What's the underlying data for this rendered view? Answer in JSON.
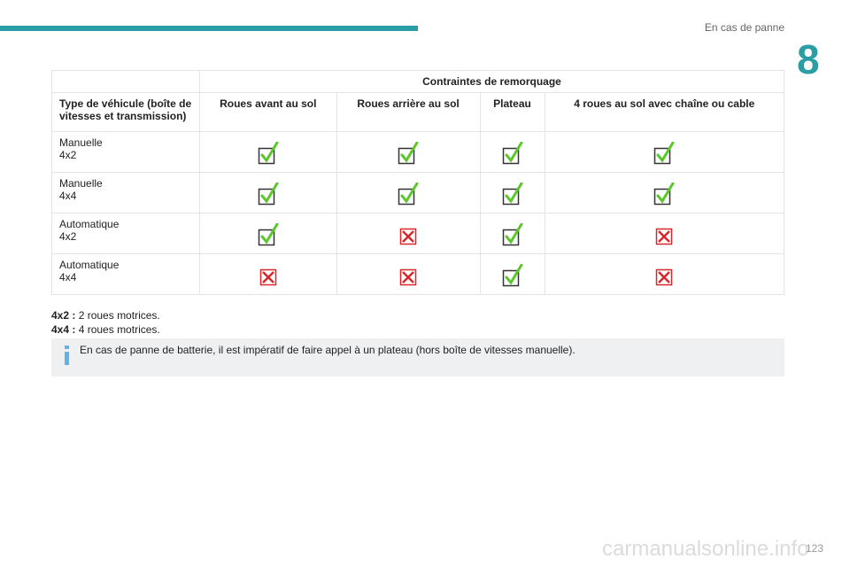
{
  "header": {
    "section": "En cas de panne",
    "chapter": "8"
  },
  "table": {
    "group_header": "Contraintes de remorquage",
    "row_header": "Type de véhicule (boîte de vitesses et transmission)",
    "columns": [
      "Roues avant au sol",
      "Roues arrière au sol",
      "Plateau",
      "4 roues au sol avec chaîne ou cable"
    ],
    "rows": [
      {
        "label": [
          "Manuelle",
          "4x2"
        ],
        "allowed": [
          true,
          true,
          true,
          true
        ]
      },
      {
        "label": [
          "Manuelle",
          "4x4"
        ],
        "allowed": [
          true,
          true,
          true,
          true
        ]
      },
      {
        "label": [
          "Automatique",
          "4x2"
        ],
        "allowed": [
          true,
          false,
          true,
          false
        ]
      },
      {
        "label": [
          "Automatique",
          "4x4"
        ],
        "allowed": [
          false,
          false,
          true,
          false
        ]
      }
    ]
  },
  "notes": [
    {
      "term": "4x2 :",
      "text": "2 roues motrices."
    },
    {
      "term": "4x4 :",
      "text": "4 roues motrices."
    }
  ],
  "info": "En cas de panne de batterie, il est impératif de faire appel à un plateau (hors boîte de vitesses manuelle).",
  "page_number": "123",
  "watermark": "carmanualsonline.info"
}
